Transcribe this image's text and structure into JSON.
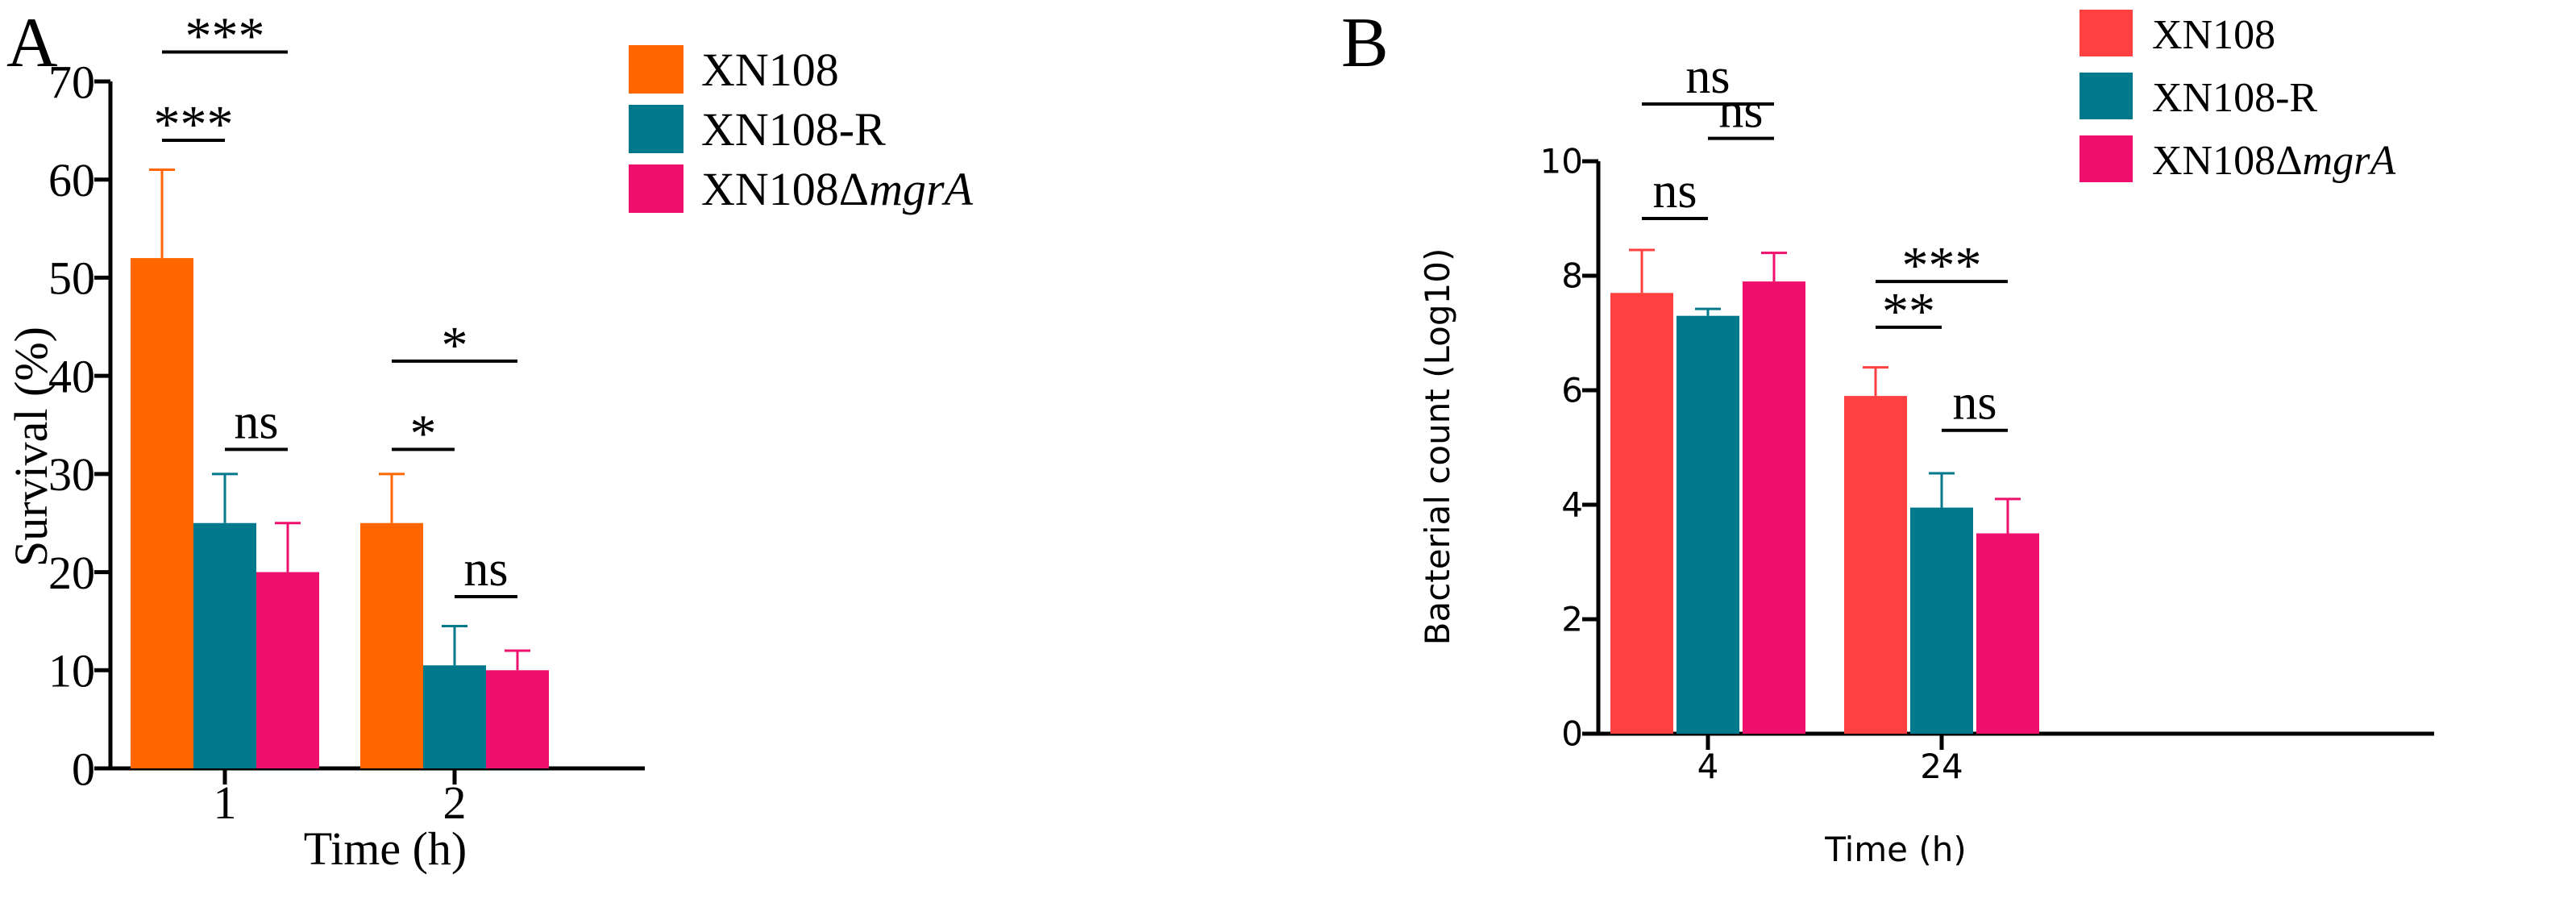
{
  "colors": {
    "panelA": [
      "#ff6600",
      "#00798c",
      "#ef0f6d"
    ],
    "panelB": [
      "#ff4040",
      "#00798c",
      "#ef0f6d"
    ],
    "axis": "#000000"
  },
  "chart_data": [
    {
      "type": "bar",
      "panel_label": "A",
      "title": "",
      "xlabel": "Time (h)",
      "ylabel": "Survival (%)",
      "ylim": [
        0,
        70
      ],
      "yticks": [
        0,
        10,
        20,
        30,
        40,
        50,
        60,
        70
      ],
      "categories": [
        "1",
        "2"
      ],
      "legend_position": "top-right",
      "series": [
        {
          "name": "XN108",
          "name_main": "XN108",
          "name_italic": "",
          "values": [
            52,
            25
          ],
          "errors": [
            9,
            5
          ]
        },
        {
          "name": "XN108-R",
          "name_main": "XN108-R",
          "name_italic": "",
          "values": [
            25,
            10.5
          ],
          "errors": [
            5,
            4
          ]
        },
        {
          "name": "XN108ΔmgrA",
          "name_main": "XN108Δ",
          "name_italic": "mgrA",
          "values": [
            20,
            10
          ],
          "errors": [
            5,
            2
          ]
        }
      ],
      "annotations": [
        {
          "group": 0,
          "from": 0,
          "to": 1,
          "y": 64,
          "label": "***"
        },
        {
          "group": 0,
          "from": 0,
          "to": 2,
          "y": 73,
          "label": "***"
        },
        {
          "group": 0,
          "from": 1,
          "to": 2,
          "y": 32.5,
          "label": "ns"
        },
        {
          "group": 1,
          "from": 0,
          "to": 1,
          "y": 32.5,
          "label": "*"
        },
        {
          "group": 1,
          "from": 0,
          "to": 2,
          "y": 41.5,
          "label": "*"
        },
        {
          "group": 1,
          "from": 1,
          "to": 2,
          "y": 17.5,
          "label": "ns"
        }
      ]
    },
    {
      "type": "bar",
      "panel_label": "B",
      "title": "",
      "xlabel": "Time (h)",
      "ylabel": "Bacterial count (Log10)",
      "ylim": [
        0,
        10
      ],
      "yticks": [
        0,
        2,
        4,
        6,
        8,
        10
      ],
      "categories": [
        "4",
        "24"
      ],
      "legend_position": "top-right",
      "series": [
        {
          "name": "XN108",
          "name_main": "XN108",
          "name_italic": "",
          "values": [
            7.7,
            5.9
          ],
          "errors": [
            0.75,
            0.5
          ]
        },
        {
          "name": "XN108-R",
          "name_main": "XN108-R",
          "name_italic": "",
          "values": [
            7.3,
            3.95
          ],
          "errors": [
            0.12,
            0.6
          ]
        },
        {
          "name": "XN108ΔmgrA",
          "name_main": "XN108Δ",
          "name_italic": "mgrA",
          "values": [
            7.9,
            3.5
          ],
          "errors": [
            0.5,
            0.6
          ]
        }
      ],
      "annotations": [
        {
          "group": 0,
          "from": 0,
          "to": 1,
          "y": 9.0,
          "label": "ns"
        },
        {
          "group": 0,
          "from": 1,
          "to": 2,
          "y": 10.4,
          "label": "ns"
        },
        {
          "group": 0,
          "from": 0,
          "to": 2,
          "y": 11.0,
          "label": "ns"
        },
        {
          "group": 1,
          "from": 0,
          "to": 1,
          "y": 7.1,
          "label": "**"
        },
        {
          "group": 1,
          "from": 1,
          "to": 2,
          "y": 5.3,
          "label": "ns"
        },
        {
          "group": 1,
          "from": 0,
          "to": 2,
          "y": 7.9,
          "label": "***"
        }
      ]
    }
  ]
}
